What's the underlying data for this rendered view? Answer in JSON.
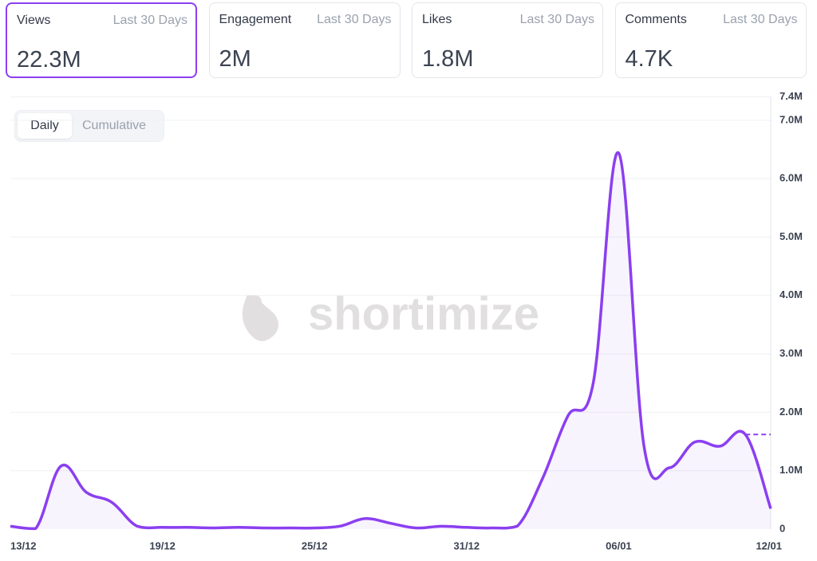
{
  "cards": [
    {
      "label": "Views",
      "period": "Last 30 Days",
      "value": "22.3M"
    },
    {
      "label": "Engagement",
      "period": "Last 30 Days",
      "value": "2M"
    },
    {
      "label": "Likes",
      "period": "Last 30 Days",
      "value": "1.8M"
    },
    {
      "label": "Comments",
      "period": "Last 30 Days",
      "value": "4.7K"
    }
  ],
  "toggle": [
    "Daily",
    "Cumulative"
  ],
  "watermark": "shortimize",
  "chart_data": {
    "type": "area",
    "categories": [
      "13/12",
      null,
      null,
      null,
      null,
      null,
      "19/12",
      null,
      null,
      null,
      null,
      null,
      "25/12",
      null,
      null,
      null,
      null,
      null,
      "31/12",
      null,
      null,
      null,
      null,
      null,
      "06/01",
      null,
      null,
      null,
      null,
      null,
      "12/01"
    ],
    "series": [
      {
        "name": "Views",
        "color": "#8b3ff0",
        "values": [
          50000,
          10000,
          1080000,
          630000,
          460000,
          50000,
          30000,
          30000,
          20000,
          30000,
          20000,
          20000,
          20000,
          50000,
          180000,
          100000,
          20000,
          50000,
          30000,
          20000,
          50000,
          870000,
          1940000,
          2510000,
          6440000,
          1420000,
          1050000,
          1490000,
          1420000,
          1620000,
          350000
        ]
      }
    ],
    "ylim": [
      0,
      7400000
    ],
    "yticks": [
      0,
      {
        "value": 1000000,
        "label": "1.0M"
      },
      {
        "value": 2000000,
        "label": "2.0M"
      },
      {
        "value": 3000000,
        "label": "3.0M"
      },
      {
        "value": 4000000,
        "label": "4.0M"
      },
      {
        "value": 5000000,
        "label": "5.0M"
      },
      {
        "value": 6000000,
        "label": "6.0M"
      },
      {
        "value": 7000000,
        "label": "7.0M"
      },
      {
        "value": 7400000,
        "label": "7.4M"
      }
    ],
    "grid": true
  }
}
